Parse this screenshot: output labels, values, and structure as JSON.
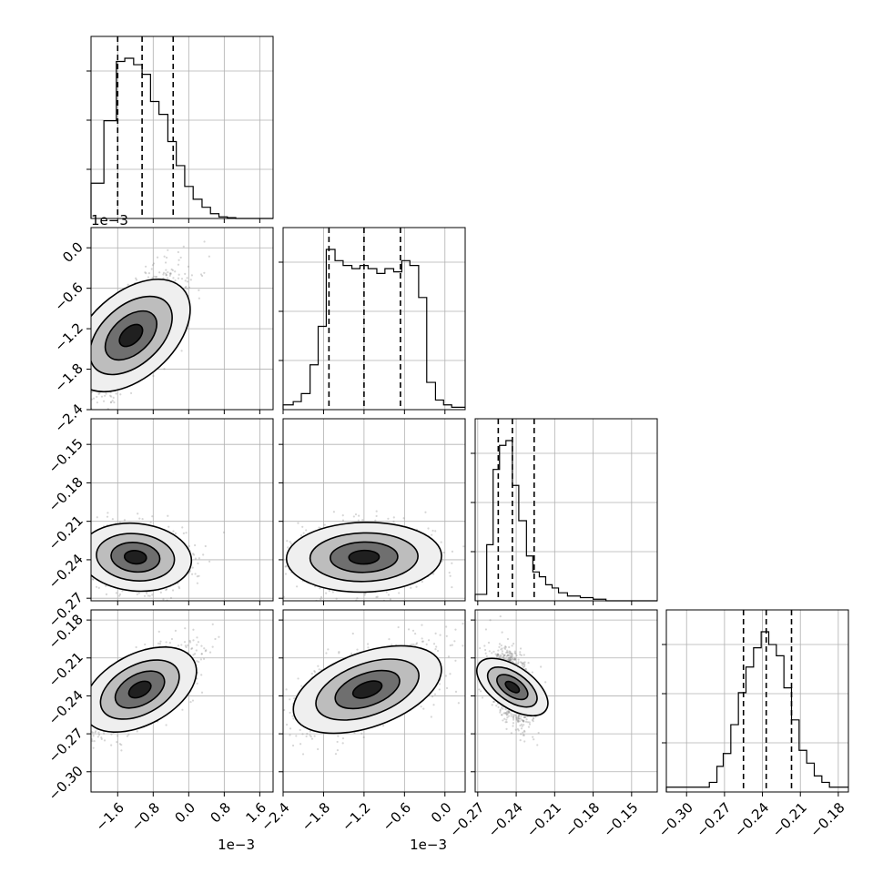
{
  "chart_data": {
    "type": "scatter",
    "title": "",
    "n_params": 4,
    "grid": true,
    "params": [
      {
        "range": [
          -2.2,
          1.9
        ],
        "ticks": [
          -1.6,
          -0.8,
          0.0,
          0.8,
          1.6
        ],
        "tick_labels": [
          "−1.6",
          "−0.8",
          "0.0",
          "0.8",
          "1.6"
        ],
        "offset": "1e−3"
      },
      {
        "range": [
          -2.4,
          0.3
        ],
        "ticks": [
          -2.4,
          -1.8,
          -1.2,
          -0.6,
          0.0
        ],
        "tick_labels": [
          "−2.4",
          "−1.8",
          "−1.2",
          "−0.6",
          "0.0"
        ],
        "offset": "1e−3"
      },
      {
        "range": [
          -0.272,
          -0.13
        ],
        "ticks": [
          -0.27,
          -0.24,
          -0.21,
          -0.18,
          -0.15
        ],
        "tick_labels": [
          "−0.27",
          "−0.24",
          "−0.21",
          "−0.18",
          "−0.15"
        ],
        "offset": ""
      },
      {
        "range": [
          -0.316,
          -0.172
        ],
        "ticks": [
          -0.3,
          -0.27,
          -0.24,
          -0.21,
          -0.18
        ],
        "tick_labels": [
          "−0.30",
          "−0.27",
          "−0.24",
          "−0.21",
          "−0.18"
        ],
        "offset": ""
      }
    ],
    "histograms": [
      {
        "param": 0,
        "quantiles": [
          -1.6,
          -1.05,
          -0.35
        ],
        "edges": [
          -2.2,
          -1.91,
          -1.63,
          -1.44,
          -1.24,
          -1.05,
          -0.86,
          -0.67,
          -0.47,
          -0.28,
          -0.09,
          0.1,
          0.3,
          0.49,
          0.68,
          0.87,
          1.06,
          1.9
        ],
        "counts": [
          22,
          61,
          98,
          100,
          96,
          90,
          73,
          65,
          48,
          33,
          20,
          12,
          7,
          3,
          1,
          0.5,
          0
        ]
      },
      {
        "param": 1,
        "quantiles": [
          -1.72,
          -1.2,
          -0.66
        ],
        "edges": [
          -2.4,
          -2.25,
          -2.13,
          -2.0,
          -1.88,
          -1.76,
          -1.63,
          -1.51,
          -1.38,
          -1.26,
          -1.14,
          -1.01,
          -0.89,
          -0.76,
          -0.64,
          -0.52,
          -0.39,
          -0.27,
          -0.14,
          -0.02,
          0.1,
          0.3
        ],
        "counts": [
          3,
          5,
          10,
          28,
          52,
          100,
          93,
          90,
          88,
          90,
          88,
          85,
          88,
          86,
          93,
          90,
          70,
          17,
          6,
          3,
          1.5
        ]
      },
      {
        "param": 2,
        "quantiles": [
          -0.254,
          -0.243,
          -0.226
        ],
        "edges": [
          -0.272,
          -0.263,
          -0.258,
          -0.253,
          -0.248,
          -0.243,
          -0.238,
          -0.232,
          -0.227,
          -0.222,
          -0.217,
          -0.212,
          -0.207,
          -0.2,
          -0.19,
          -0.18,
          -0.17,
          -0.13
        ],
        "counts": [
          4,
          35,
          82,
          97,
          100,
          72,
          50,
          28,
          18,
          15,
          10,
          8,
          5,
          3,
          2,
          1,
          0
        ]
      },
      {
        "param": 3,
        "quantiles": [
          -0.255,
          -0.237,
          -0.217
        ],
        "edges": [
          -0.316,
          -0.282,
          -0.276,
          -0.271,
          -0.265,
          -0.259,
          -0.253,
          -0.247,
          -0.241,
          -0.235,
          -0.229,
          -0.223,
          -0.217,
          -0.211,
          -0.205,
          -0.199,
          -0.193,
          -0.187,
          -0.172
        ],
        "counts": [
          3,
          6,
          16,
          24,
          42,
          62,
          78,
          90,
          100,
          92,
          85,
          65,
          45,
          26,
          18,
          10,
          6,
          3
        ]
      }
    ],
    "pairs": [
      {
        "x": 0,
        "y": 1,
        "center": [
          -1.3,
          -1.3
        ],
        "sd": [
          0.55,
          0.45
        ],
        "corr": 0.72,
        "samples": 1600
      },
      {
        "x": 0,
        "y": 2,
        "center": [
          -1.2,
          -0.238
        ],
        "sd": [
          0.55,
          0.012
        ],
        "corr": -0.15,
        "samples": 1200
      },
      {
        "x": 1,
        "y": 2,
        "center": [
          -1.2,
          -0.238
        ],
        "sd": [
          0.5,
          0.012
        ],
        "corr": 0.05,
        "samples": 1200
      },
      {
        "x": 0,
        "y": 3,
        "center": [
          -1.1,
          -0.235
        ],
        "sd": [
          0.6,
          0.016
        ],
        "corr": 0.7,
        "samples": 1600
      },
      {
        "x": 1,
        "y": 3,
        "center": [
          -1.15,
          -0.235
        ],
        "sd": [
          0.5,
          0.016
        ],
        "corr": 0.6,
        "samples": 1600
      },
      {
        "x": 2,
        "y": 3,
        "center": [
          -0.243,
          -0.233
        ],
        "sd": [
          0.008,
          0.014
        ],
        "corr": -0.4,
        "samples": 1400
      }
    ]
  }
}
